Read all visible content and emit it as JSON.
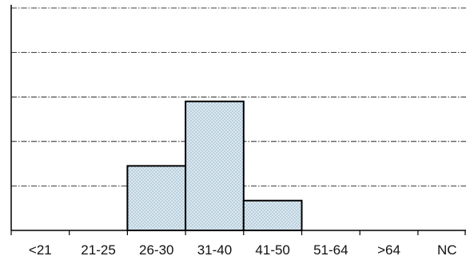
{
  "chart_data": {
    "type": "bar",
    "categories": [
      "<21",
      "21-25",
      "26-30",
      "31-40",
      "41-50",
      "51-64",
      ">64",
      "NC"
    ],
    "values": [
      0,
      0,
      1.45,
      2.9,
      0.67,
      0,
      0,
      0
    ],
    "title": "",
    "xlabel": "",
    "ylabel": "",
    "ylim": [
      0,
      5
    ],
    "grid": true,
    "legend": "none",
    "colors": {
      "bar_fill": "#dbe7ef",
      "bar_dots": "#8fb2c8",
      "bar_stroke": "#000000",
      "grid": "#000000",
      "axis": "#000000"
    }
  }
}
